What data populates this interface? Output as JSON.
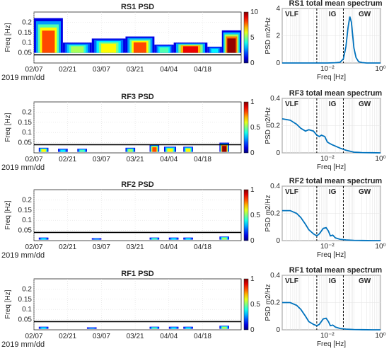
{
  "chart_data": [
    {
      "type": "heatmap",
      "title": "RS1 PSD",
      "ylabel": "Freq [Hz]",
      "xlabel": "2019 mm/dd",
      "x_ticks": [
        "02/07",
        "02/21",
        "03/07",
        "03/21",
        "04/04",
        "04/18"
      ],
      "y_ticks": [
        "0.05",
        "0.1",
        "0.15",
        "0.2"
      ],
      "ylim": [
        0,
        0.25
      ],
      "colorbar": {
        "min": 0,
        "max": 10,
        "ticks": [
          "0",
          "5",
          "10"
        ]
      },
      "threshold_line_hz": 0.04,
      "activity": [
        {
          "start_day": 0,
          "end_day": 12,
          "fmin": 0.05,
          "fmax": 0.22,
          "peak": 8
        },
        {
          "start_day": 12,
          "end_day": 24,
          "fmin": 0.05,
          "fmax": 0.1,
          "peak": 5
        },
        {
          "start_day": 24,
          "end_day": 38,
          "fmin": 0.05,
          "fmax": 0.12,
          "peak": 6
        },
        {
          "start_day": 38,
          "end_day": 50,
          "fmin": 0.05,
          "fmax": 0.13,
          "peak": 8
        },
        {
          "start_day": 50,
          "end_day": 58,
          "fmin": 0.05,
          "fmax": 0.09,
          "peak": 4
        },
        {
          "start_day": 58,
          "end_day": 72,
          "fmin": 0.05,
          "fmax": 0.1,
          "peak": 9
        },
        {
          "start_day": 72,
          "end_day": 78,
          "fmin": 0.05,
          "fmax": 0.08,
          "peak": 3
        },
        {
          "start_day": 78,
          "end_day": 86,
          "fmin": 0.05,
          "fmax": 0.16,
          "peak": 10
        }
      ]
    },
    {
      "type": "line",
      "title": "RS1 total mean spectrum",
      "ylabel": "PSD m2/Hz",
      "xlabel": "Freq [Hz]",
      "xscale": "log",
      "xlim": [
        0.0002,
        1
      ],
      "ylim": [
        0,
        4
      ],
      "y_ticks": [
        "0",
        "2",
        "4"
      ],
      "x_ticks": [
        "10⁻²",
        "10⁰"
      ],
      "bands": [
        "VLF",
        "IG",
        "GW"
      ],
      "band_edges_hz": [
        0.004,
        0.04
      ],
      "x": [
        0.0002,
        0.0005,
        0.001,
        0.002,
        0.005,
        0.01,
        0.02,
        0.03,
        0.04,
        0.05,
        0.06,
        0.07,
        0.08,
        0.09,
        0.1,
        0.12,
        0.15,
        0.2,
        0.3,
        0.5,
        1
      ],
      "y": [
        0,
        0,
        0,
        0,
        0,
        0,
        0.02,
        0.05,
        0.3,
        1.2,
        2.6,
        3.4,
        3.0,
        2.0,
        1.1,
        0.4,
        0.1,
        0.03,
        0,
        0,
        0
      ]
    },
    {
      "type": "heatmap",
      "title": "RF3 PSD",
      "ylabel": "Freq [Hz]",
      "xlabel": "2019 mm/dd",
      "x_ticks": [
        "02/07",
        "02/21",
        "03/07",
        "03/21",
        "04/04",
        "04/18"
      ],
      "y_ticks": [
        "0.05",
        "0.1",
        "0.15",
        "0.2"
      ],
      "ylim": [
        0,
        0.25
      ],
      "colorbar": {
        "min": 0,
        "max": 1,
        "ticks": [
          "0",
          "0.5",
          "1"
        ]
      },
      "threshold_line_hz": 0.04,
      "activity": [
        {
          "start_day": 2,
          "end_day": 6,
          "fmin": 0.005,
          "fmax": 0.025,
          "peak": 0.6
        },
        {
          "start_day": 10,
          "end_day": 14,
          "fmin": 0.005,
          "fmax": 0.02,
          "peak": 0.3
        },
        {
          "start_day": 18,
          "end_day": 22,
          "fmin": 0.005,
          "fmax": 0.02,
          "peak": 0.4
        },
        {
          "start_day": 38,
          "end_day": 42,
          "fmin": 0.005,
          "fmax": 0.025,
          "peak": 0.5
        },
        {
          "start_day": 48,
          "end_day": 52,
          "fmin": 0.005,
          "fmax": 0.04,
          "peak": 0.8
        },
        {
          "start_day": 54,
          "end_day": 59,
          "fmin": 0.005,
          "fmax": 0.03,
          "peak": 0.6
        },
        {
          "start_day": 62,
          "end_day": 66,
          "fmin": 0.005,
          "fmax": 0.03,
          "peak": 0.6
        },
        {
          "start_day": 77,
          "end_day": 81,
          "fmin": 0.005,
          "fmax": 0.05,
          "peak": 1
        }
      ]
    },
    {
      "type": "line",
      "title": "RF3 total mean spectrum",
      "ylabel": "PSD m2/Hz",
      "xlabel": "Freq [Hz]",
      "xscale": "log",
      "xlim": [
        0.0002,
        1
      ],
      "ylim": [
        0,
        0.4
      ],
      "y_ticks": [
        "0",
        "0.2",
        "0.4"
      ],
      "x_ticks": [
        "10⁻²",
        "10⁰"
      ],
      "bands": [
        "VLF",
        "IG",
        "GW"
      ],
      "band_edges_hz": [
        0.004,
        0.04
      ],
      "x": [
        0.0002,
        0.0004,
        0.0007,
        0.001,
        0.0015,
        0.002,
        0.003,
        0.004,
        0.005,
        0.006,
        0.008,
        0.01,
        0.012,
        0.015,
        0.02,
        0.03,
        0.05,
        0.08,
        0.1,
        0.2,
        0.5,
        1
      ],
      "y": [
        0.25,
        0.24,
        0.21,
        0.18,
        0.16,
        0.17,
        0.16,
        0.13,
        0.12,
        0.13,
        0.12,
        0.08,
        0.07,
        0.06,
        0.05,
        0.035,
        0.02,
        0.01,
        0.005,
        0.002,
        0.001,
        0
      ]
    },
    {
      "type": "heatmap",
      "title": "RF2 PSD",
      "ylabel": "Freq [Hz]",
      "xlabel": "2019 mm/dd",
      "x_ticks": [
        "02/07",
        "02/21",
        "03/07",
        "03/21",
        "04/04",
        "04/18"
      ],
      "y_ticks": [
        "0.05",
        "0.1",
        "0.15",
        "0.2"
      ],
      "ylim": [
        0,
        0.25
      ],
      "colorbar": {
        "min": 0,
        "max": 1,
        "ticks": [
          "0",
          "0.5",
          "1"
        ]
      },
      "threshold_line_hz": 0.04,
      "activity": [
        {
          "start_day": 2,
          "end_day": 6,
          "fmin": 0.005,
          "fmax": 0.015,
          "peak": 0.3
        },
        {
          "start_day": 24,
          "end_day": 28,
          "fmin": 0.005,
          "fmax": 0.012,
          "peak": 0.2
        },
        {
          "start_day": 48,
          "end_day": 52,
          "fmin": 0.005,
          "fmax": 0.015,
          "peak": 0.4
        },
        {
          "start_day": 56,
          "end_day": 60,
          "fmin": 0.005,
          "fmax": 0.015,
          "peak": 0.3
        },
        {
          "start_day": 62,
          "end_day": 66,
          "fmin": 0.005,
          "fmax": 0.015,
          "peak": 0.3
        },
        {
          "start_day": 77,
          "end_day": 81,
          "fmin": 0.005,
          "fmax": 0.02,
          "peak": 0.5
        }
      ]
    },
    {
      "type": "line",
      "title": "RF2 total mean spectrum",
      "ylabel": "PSD m2/Hz",
      "xlabel": "Freq [Hz]",
      "xscale": "log",
      "xlim": [
        0.0002,
        1
      ],
      "ylim": [
        0,
        0.4
      ],
      "y_ticks": [
        "0",
        "0.2",
        "0.4"
      ],
      "x_ticks": [
        "10⁻²",
        "10⁰"
      ],
      "bands": [
        "VLF",
        "IG",
        "GW"
      ],
      "band_edges_hz": [
        0.004,
        0.04
      ],
      "x": [
        0.0002,
        0.0004,
        0.0007,
        0.001,
        0.0015,
        0.002,
        0.003,
        0.004,
        0.005,
        0.007,
        0.009,
        0.011,
        0.013,
        0.016,
        0.02,
        0.03,
        0.05,
        0.1,
        0.2,
        0.5,
        1
      ],
      "y": [
        0.22,
        0.22,
        0.2,
        0.17,
        0.12,
        0.08,
        0.05,
        0.035,
        0.05,
        0.09,
        0.095,
        0.07,
        0.035,
        0.04,
        0.02,
        0.01,
        0.005,
        0.002,
        0.001,
        0,
        0
      ]
    },
    {
      "type": "heatmap",
      "title": "RF1 PSD",
      "ylabel": "Freq [Hz]",
      "xlabel": "2019 mm/dd",
      "x_ticks": [
        "02/07",
        "02/21",
        "03/07",
        "03/21",
        "04/04",
        "04/18"
      ],
      "y_ticks": [
        "0.05",
        "0.1",
        "0.15",
        "0.2"
      ],
      "ylim": [
        0,
        0.25
      ],
      "colorbar": {
        "min": 0,
        "max": 1,
        "ticks": [
          "0",
          "0.5",
          "1"
        ]
      },
      "threshold_line_hz": 0.04,
      "activity": [
        {
          "start_day": 2,
          "end_day": 6,
          "fmin": 0.005,
          "fmax": 0.015,
          "peak": 0.3
        },
        {
          "start_day": 22,
          "end_day": 26,
          "fmin": 0.005,
          "fmax": 0.012,
          "peak": 0.2
        },
        {
          "start_day": 48,
          "end_day": 52,
          "fmin": 0.005,
          "fmax": 0.015,
          "peak": 0.4
        },
        {
          "start_day": 56,
          "end_day": 60,
          "fmin": 0.005,
          "fmax": 0.015,
          "peak": 0.3
        },
        {
          "start_day": 62,
          "end_day": 66,
          "fmin": 0.005,
          "fmax": 0.015,
          "peak": 0.3
        },
        {
          "start_day": 77,
          "end_day": 81,
          "fmin": 0.005,
          "fmax": 0.02,
          "peak": 0.5
        }
      ]
    },
    {
      "type": "line",
      "title": "RF1 total mean spectrum",
      "ylabel": "PSD m2/Hz",
      "xlabel": "Freq [Hz]",
      "xscale": "log",
      "xlim": [
        0.0002,
        1
      ],
      "ylim": [
        0,
        0.4
      ],
      "y_ticks": [
        "0",
        "0.2",
        "0.4"
      ],
      "x_ticks": [
        "10⁻²",
        "10⁰"
      ],
      "bands": [
        "VLF",
        "IG",
        "GW"
      ],
      "band_edges_hz": [
        0.004,
        0.04
      ],
      "x": [
        0.0002,
        0.0004,
        0.0007,
        0.001,
        0.0015,
        0.002,
        0.003,
        0.004,
        0.005,
        0.007,
        0.009,
        0.011,
        0.013,
        0.016,
        0.02,
        0.03,
        0.05,
        0.1,
        0.2,
        0.5,
        1
      ],
      "y": [
        0.2,
        0.2,
        0.18,
        0.15,
        0.1,
        0.06,
        0.04,
        0.03,
        0.04,
        0.08,
        0.085,
        0.06,
        0.03,
        0.035,
        0.02,
        0.01,
        0.005,
        0.002,
        0.001,
        0,
        0
      ]
    }
  ]
}
